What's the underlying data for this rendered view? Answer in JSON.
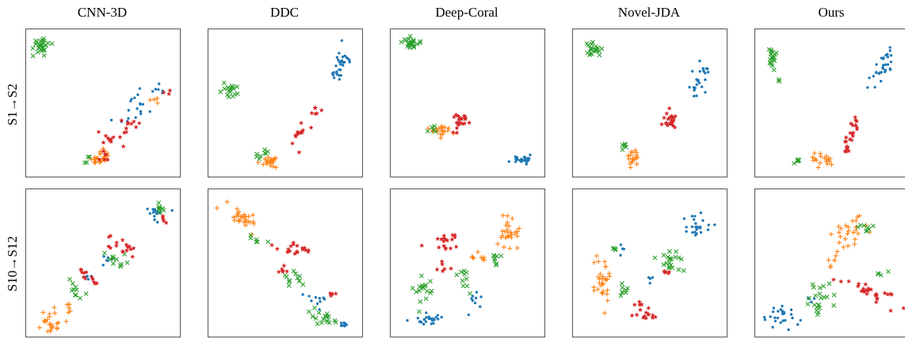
{
  "figure": {
    "columns": [
      "CNN-3D",
      "DDC",
      "Deep-Coral",
      "Novel-JDA",
      "Ours"
    ],
    "rows": [
      "S1→S2",
      "S10→S12"
    ]
  },
  "colors": {
    "blue": "#1f77b4",
    "orange": "#ff7f0e",
    "green": "#2ca02c",
    "red": "#d62728"
  },
  "chart_data": [
    {
      "type": "scatter",
      "title": "CNN-3D",
      "row": "S1→S2",
      "xlim": [
        0,
        1
      ],
      "ylim": [
        0,
        1
      ],
      "grid": false,
      "series": [
        {
          "color": "blue",
          "marker": "dot",
          "clusters": [
            [
              0.7,
              0.46,
              0.1,
              0.14,
              -35,
              18
            ],
            [
              0.88,
              0.6,
              0.05,
              0.05,
              0,
              6
            ]
          ]
        },
        {
          "color": "orange",
          "marker": "plus",
          "clusters": [
            [
              0.48,
              0.1,
              0.07,
              0.05,
              0,
              22
            ],
            [
              0.85,
              0.54,
              0.03,
              0.03,
              0,
              4
            ]
          ]
        },
        {
          "color": "green",
          "marker": "x",
          "clusters": [
            [
              0.08,
              0.92,
              0.05,
              0.05,
              0,
              30
            ],
            [
              0.4,
              0.09,
              0.03,
              0.03,
              0,
              4
            ]
          ]
        },
        {
          "color": "red",
          "marker": "star",
          "clusters": [
            [
              0.68,
              0.35,
              0.07,
              0.05,
              -30,
              10
            ],
            [
              0.56,
              0.22,
              0.08,
              0.05,
              -35,
              10
            ],
            [
              0.52,
              0.12,
              0.04,
              0.04,
              -35,
              6
            ],
            [
              0.94,
              0.57,
              0.02,
              0.02,
              0,
              3
            ]
          ]
        }
      ]
    },
    {
      "type": "scatter",
      "title": "DDC",
      "row": "S1→S2",
      "xlim": [
        0,
        1
      ],
      "ylim": [
        0,
        1
      ],
      "grid": false,
      "series": [
        {
          "color": "blue",
          "marker": "dot",
          "clusters": [
            [
              0.88,
              0.78,
              0.05,
              0.14,
              -15,
              30
            ]
          ]
        },
        {
          "color": "orange",
          "marker": "plus",
          "clusters": [
            [
              0.4,
              0.08,
              0.06,
              0.04,
              0,
              22
            ]
          ]
        },
        {
          "color": "green",
          "marker": "x",
          "clusters": [
            [
              0.12,
              0.58,
              0.05,
              0.05,
              0,
              18
            ],
            [
              0.34,
              0.12,
              0.04,
              0.03,
              -35,
              8
            ]
          ]
        },
        {
          "color": "red",
          "marker": "star",
          "clusters": [
            [
              0.6,
              0.26,
              0.04,
              0.09,
              -25,
              12
            ],
            [
              0.7,
              0.44,
              0.03,
              0.06,
              -20,
              6
            ]
          ]
        }
      ]
    },
    {
      "type": "scatter",
      "title": "Deep-Coral",
      "row": "S1→S2",
      "xlim": [
        0,
        1
      ],
      "ylim": [
        0,
        1
      ],
      "grid": false,
      "series": [
        {
          "color": "blue",
          "marker": "dot",
          "clusters": [
            [
              0.88,
              0.09,
              0.06,
              0.03,
              -12,
              22
            ]
          ]
        },
        {
          "color": "orange",
          "marker": "plus",
          "clusters": [
            [
              0.3,
              0.3,
              0.06,
              0.03,
              0,
              20
            ]
          ]
        },
        {
          "color": "green",
          "marker": "x",
          "clusters": [
            [
              0.1,
              0.93,
              0.05,
              0.03,
              0,
              25
            ],
            [
              0.26,
              0.31,
              0.03,
              0.02,
              0,
              5
            ]
          ]
        },
        {
          "color": "red",
          "marker": "star",
          "clusters": [
            [
              0.46,
              0.38,
              0.05,
              0.04,
              -20,
              18
            ],
            [
              0.4,
              0.3,
              0.02,
              0.02,
              0,
              3
            ]
          ]
        }
      ]
    },
    {
      "type": "scatter",
      "title": "Novel-JDA",
      "row": "S1→S2",
      "xlim": [
        0,
        1
      ],
      "ylim": [
        0,
        1
      ],
      "grid": false,
      "series": [
        {
          "color": "blue",
          "marker": "dot",
          "clusters": [
            [
              0.84,
              0.66,
              0.05,
              0.12,
              -20,
              25
            ]
          ]
        },
        {
          "color": "orange",
          "marker": "plus",
          "clusters": [
            [
              0.38,
              0.1,
              0.04,
              0.05,
              -25,
              18
            ]
          ]
        },
        {
          "color": "green",
          "marker": "x",
          "clusters": [
            [
              0.11,
              0.88,
              0.05,
              0.05,
              0,
              22
            ],
            [
              0.32,
              0.19,
              0.02,
              0.03,
              0,
              6
            ]
          ]
        },
        {
          "color": "red",
          "marker": "star",
          "clusters": [
            [
              0.64,
              0.36,
              0.04,
              0.06,
              -25,
              22
            ]
          ]
        }
      ]
    },
    {
      "type": "scatter",
      "title": "Ours",
      "row": "S1→S2",
      "xlim": [
        0,
        1
      ],
      "ylim": [
        0,
        1
      ],
      "grid": false,
      "series": [
        {
          "color": "blue",
          "marker": "dot",
          "clusters": [
            [
              0.84,
              0.74,
              0.04,
              0.14,
              -25,
              30
            ]
          ]
        },
        {
          "color": "orange",
          "marker": "plus",
          "clusters": [
            [
              0.42,
              0.1,
              0.07,
              0.04,
              0,
              18
            ]
          ]
        },
        {
          "color": "green",
          "marker": "x",
          "clusters": [
            [
              0.09,
              0.84,
              0.02,
              0.09,
              0,
              20
            ],
            [
              0.14,
              0.66,
              0.01,
              0.02,
              0,
              3
            ],
            [
              0.28,
              0.08,
              0.03,
              0.02,
              0,
              5
            ]
          ]
        },
        {
          "color": "red",
          "marker": "star",
          "clusters": [
            [
              0.62,
              0.22,
              0.03,
              0.13,
              -15,
              20
            ],
            [
              0.66,
              0.36,
              0.02,
              0.04,
              0,
              5
            ]
          ]
        }
      ]
    },
    {
      "type": "scatter",
      "title": "CNN-3D",
      "row": "S10→S12",
      "xlim": [
        0,
        1
      ],
      "ylim": [
        0,
        1
      ],
      "grid": false,
      "series": [
        {
          "color": "blue",
          "marker": "dot",
          "clusters": [
            [
              0.86,
              0.86,
              0.05,
              0.05,
              0,
              14
            ],
            [
              0.52,
              0.52,
              0.04,
              0.03,
              0,
              6
            ],
            [
              0.38,
              0.4,
              0.03,
              0.02,
              0,
              5
            ]
          ]
        },
        {
          "color": "orange",
          "marker": "plus",
          "clusters": [
            [
              0.14,
              0.08,
              0.08,
              0.06,
              -40,
              22
            ],
            [
              0.26,
              0.18,
              0.04,
              0.03,
              -35,
              6
            ]
          ]
        },
        {
          "color": "green",
          "marker": "x",
          "clusters": [
            [
              0.6,
              0.52,
              0.1,
              0.04,
              -35,
              12
            ],
            [
              0.3,
              0.32,
              0.08,
              0.03,
              -45,
              10
            ],
            [
              0.9,
              0.89,
              0.04,
              0.03,
              0,
              8
            ]
          ]
        },
        {
          "color": "red",
          "marker": "star",
          "clusters": [
            [
              0.62,
              0.62,
              0.1,
              0.05,
              -35,
              16
            ],
            [
              0.4,
              0.4,
              0.1,
              0.03,
              -45,
              12
            ],
            [
              0.92,
              0.8,
              0.02,
              0.04,
              0,
              5
            ]
          ]
        }
      ]
    },
    {
      "type": "scatter",
      "title": "DDC",
      "row": "S10→S12",
      "xlim": [
        0,
        1
      ],
      "ylim": [
        0,
        1
      ],
      "grid": false,
      "series": [
        {
          "color": "blue",
          "marker": "dot",
          "clusters": [
            [
              0.72,
              0.24,
              0.05,
              0.05,
              0,
              10
            ],
            [
              0.9,
              0.05,
              0.03,
              0.02,
              0,
              8
            ]
          ]
        },
        {
          "color": "orange",
          "marker": "plus",
          "clusters": [
            [
              0.2,
              0.84,
              0.1,
              0.05,
              -40,
              28
            ]
          ]
        },
        {
          "color": "green",
          "marker": "x",
          "clusters": [
            [
              0.78,
              0.1,
              0.1,
              0.04,
              -30,
              18
            ],
            [
              0.55,
              0.4,
              0.08,
              0.04,
              -35,
              12
            ],
            [
              0.3,
              0.66,
              0.05,
              0.03,
              0,
              6
            ]
          ]
        },
        {
          "color": "red",
          "marker": "star",
          "clusters": [
            [
              0.56,
              0.6,
              0.1,
              0.04,
              -10,
              18
            ],
            [
              0.5,
              0.44,
              0.05,
              0.03,
              -30,
              6
            ],
            [
              0.82,
              0.28,
              0.03,
              0.02,
              0,
              4
            ]
          ]
        }
      ]
    },
    {
      "type": "scatter",
      "title": "Deep-Coral",
      "row": "S10→S12",
      "xlim": [
        0,
        1
      ],
      "ylim": [
        0,
        1
      ],
      "grid": false,
      "series": [
        {
          "color": "blue",
          "marker": "dot",
          "clusters": [
            [
              0.24,
              0.1,
              0.12,
              0.04,
              0,
              24
            ],
            [
              0.55,
              0.24,
              0.05,
              0.04,
              0,
              8
            ]
          ]
        },
        {
          "color": "orange",
          "marker": "plus",
          "clusters": [
            [
              0.78,
              0.7,
              0.08,
              0.1,
              -25,
              28
            ],
            [
              0.58,
              0.54,
              0.05,
              0.04,
              0,
              8
            ]
          ]
        },
        {
          "color": "green",
          "marker": "x",
          "clusters": [
            [
              0.2,
              0.3,
              0.06,
              0.1,
              -20,
              18
            ],
            [
              0.46,
              0.4,
              0.07,
              0.05,
              -30,
              10
            ],
            [
              0.7,
              0.52,
              0.04,
              0.05,
              0,
              8
            ]
          ]
        },
        {
          "color": "red",
          "marker": "star",
          "clusters": [
            [
              0.34,
              0.66,
              0.1,
              0.06,
              0,
              18
            ],
            [
              0.32,
              0.46,
              0.05,
              0.04,
              0,
              6
            ]
          ]
        }
      ]
    },
    {
      "type": "scatter",
      "title": "Novel-JDA",
      "row": "S10→S12",
      "xlim": [
        0,
        1
      ],
      "ylim": [
        0,
        1
      ],
      "grid": false,
      "series": [
        {
          "color": "blue",
          "marker": "dot",
          "clusters": [
            [
              0.84,
              0.78,
              0.08,
              0.08,
              -30,
              24
            ],
            [
              0.3,
              0.6,
              0.02,
              0.03,
              0,
              4
            ],
            [
              0.5,
              0.38,
              0.03,
              0.02,
              0,
              4
            ]
          ]
        },
        {
          "color": "orange",
          "marker": "plus",
          "clusters": [
            [
              0.18,
              0.36,
              0.06,
              0.15,
              0,
              30
            ]
          ]
        },
        {
          "color": "green",
          "marker": "x",
          "clusters": [
            [
              0.64,
              0.52,
              0.08,
              0.06,
              -40,
              20
            ],
            [
              0.32,
              0.3,
              0.04,
              0.05,
              0,
              8
            ],
            [
              0.25,
              0.6,
              0.02,
              0.02,
              0,
              4
            ]
          ]
        },
        {
          "color": "red",
          "marker": "star",
          "clusters": [
            [
              0.46,
              0.14,
              0.07,
              0.07,
              0,
              18
            ],
            [
              0.62,
              0.44,
              0.03,
              0.02,
              0,
              6
            ]
          ]
        }
      ]
    },
    {
      "type": "scatter",
      "title": "Ours",
      "row": "S10→S12",
      "xlim": [
        0,
        1
      ],
      "ylim": [
        0,
        1
      ],
      "grid": false,
      "series": [
        {
          "color": "blue",
          "marker": "dot",
          "clusters": [
            [
              0.16,
              0.12,
              0.09,
              0.08,
              0,
              26
            ],
            [
              0.36,
              0.24,
              0.03,
              0.03,
              0,
              4
            ]
          ]
        },
        {
          "color": "orange",
          "marker": "plus",
          "clusters": [
            [
              0.62,
              0.7,
              0.09,
              0.13,
              -40,
              28
            ],
            [
              0.5,
              0.5,
              0.03,
              0.03,
              0,
              5
            ]
          ]
        },
        {
          "color": "green",
          "marker": "x",
          "clusters": [
            [
              0.4,
              0.24,
              0.07,
              0.1,
              0,
              22
            ],
            [
              0.74,
              0.74,
              0.05,
              0.04,
              -35,
              8
            ],
            [
              0.82,
              0.42,
              0.03,
              0.02,
              0,
              4
            ]
          ]
        },
        {
          "color": "red",
          "marker": "star",
          "clusters": [
            [
              0.78,
              0.28,
              0.18,
              0.05,
              -20,
              28
            ]
          ]
        }
      ]
    }
  ]
}
